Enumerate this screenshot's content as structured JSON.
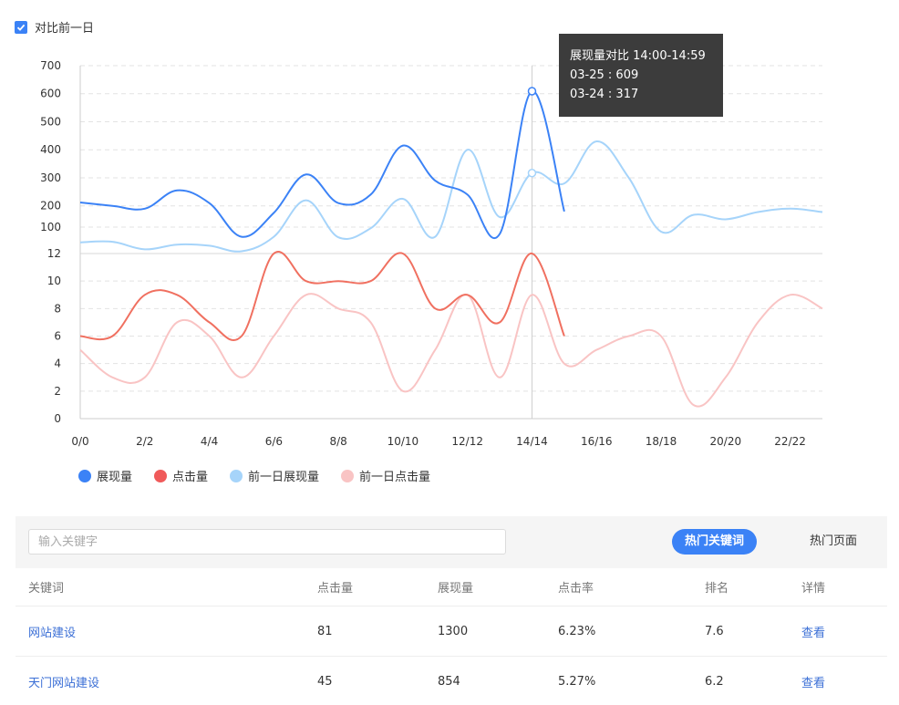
{
  "compare_toggle": {
    "label": "对比前一日",
    "checked": true
  },
  "tooltip": {
    "title": "展现量对比 14:00-14:59",
    "line1": "03-25 : 609",
    "line2": "03-24 : 317"
  },
  "legend": [
    {
      "label": "展现量",
      "color": "#3b82f6"
    },
    {
      "label": "点击量",
      "color": "#f05a5a"
    },
    {
      "label": "前一日展现量",
      "color": "#a6d4fa"
    },
    {
      "label": "前一日点击量",
      "color": "#f9c4c4"
    }
  ],
  "chart_data": {
    "type": "line",
    "x": [
      "0/0",
      "1/1",
      "2/2",
      "3/3",
      "4/4",
      "5/5",
      "6/6",
      "7/7",
      "8/8",
      "9/9",
      "10/10",
      "11/11",
      "12/12",
      "13/13",
      "14/14",
      "15/15",
      "16/16",
      "17/17",
      "18/18",
      "19/19",
      "20/20",
      "21/21",
      "22/22",
      "23/23"
    ],
    "x_tick_labels": [
      "0/0",
      "2/2",
      "4/4",
      "6/6",
      "8/8",
      "10/10",
      "12/12",
      "14/14",
      "16/16",
      "18/18",
      "20/20",
      "22/22"
    ],
    "top_panel": {
      "yticks": [
        100,
        200,
        300,
        400,
        500,
        600,
        700
      ],
      "ylim": [
        30,
        700
      ],
      "series": [
        {
          "name": "展现量",
          "color": "#3b82f6",
          "values": [
            212,
            200,
            190,
            255,
            210,
            90,
            175,
            312,
            210,
            240,
            415,
            290,
            240,
            100,
            609,
            180
          ]
        },
        {
          "name": "前一日展现量",
          "color": "#a6d4fa",
          "values": [
            70,
            72,
            45,
            62,
            58,
            38,
            90,
            220,
            88,
            120,
            225,
            90,
            400,
            160,
            317,
            280,
            430,
            300,
            108,
            168,
            152,
            178,
            190,
            178
          ]
        }
      ]
    },
    "bottom_panel": {
      "yticks": [
        0,
        2,
        4,
        6,
        8,
        10,
        12
      ],
      "ylim": [
        0,
        12
      ],
      "series": [
        {
          "name": "点击量",
          "color": "#f07060",
          "values": [
            6,
            6,
            9,
            9,
            7,
            6,
            12,
            10,
            10,
            10,
            12,
            8,
            9,
            7,
            12,
            6
          ]
        },
        {
          "name": "前一日点击量",
          "color": "#f9c4c4",
          "values": [
            5,
            3,
            3,
            7,
            6,
            3,
            6,
            9,
            8,
            7,
            2,
            5,
            9,
            3,
            9,
            4,
            5,
            6,
            6,
            1,
            3,
            7,
            9,
            8
          ]
        }
      ]
    },
    "hover_index": 14,
    "grid": true
  },
  "search": {
    "placeholder": "输入关键字",
    "value": ""
  },
  "tabs": {
    "keywords": "热门关键词",
    "pages": "热门页面"
  },
  "table": {
    "headers": [
      "关键词",
      "点击量",
      "展现量",
      "点击率",
      "排名",
      "详情"
    ],
    "rows": [
      {
        "keyword": "网站建设",
        "clicks": "81",
        "impressions": "1300",
        "ctr": "6.23%",
        "rank": "7.6",
        "detail": "查看"
      },
      {
        "keyword": "天门网站建设",
        "clicks": "45",
        "impressions": "854",
        "ctr": "5.27%",
        "rank": "6.2",
        "detail": "查看"
      }
    ]
  }
}
